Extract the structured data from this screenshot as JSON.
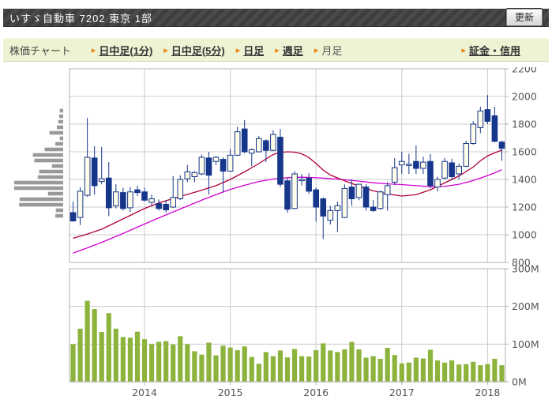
{
  "header": {
    "title": "いすゞ自動車 7202 東京 1部",
    "refresh_label": "更新"
  },
  "toolbar": {
    "label": "株価チャート",
    "arrow": "▸",
    "items": [
      {
        "label": "日中足(1分)",
        "link": true
      },
      {
        "label": "日中足(5分)",
        "link": true
      },
      {
        "label": "日足",
        "link": true
      },
      {
        "label": "週足",
        "link": true
      },
      {
        "label": "月足",
        "link": false
      },
      {
        "label": "証金・信用",
        "link": true
      }
    ]
  },
  "chart_data": {
    "type": "candlestick+volume",
    "period": "monthly",
    "grid": true,
    "price_axis": {
      "min": 800,
      "max": 2200,
      "step": 200,
      "ticks": [
        2200,
        2000,
        1800,
        1600,
        1400,
        1200,
        1000,
        800
      ]
    },
    "volume_axis": {
      "max": 300,
      "ticks": [
        {
          "label": "300M",
          "value": 300
        },
        {
          "label": "200M",
          "value": 200
        },
        {
          "label": "100M",
          "value": 100
        },
        {
          "label": "0M",
          "value": 0
        }
      ]
    },
    "x_labels": [
      {
        "label": "2014",
        "slot": 10
      },
      {
        "label": "2015",
        "slot": 22
      },
      {
        "label": "2016",
        "slot": 34
      },
      {
        "label": "2017",
        "slot": 46
      },
      {
        "label": "2018",
        "slot": 58
      }
    ],
    "columns": [
      "month",
      "open",
      "high",
      "low",
      "close",
      "volume_m"
    ],
    "months": [
      [
        "2013-03",
        1160,
        1240,
        1095,
        1100,
        100
      ],
      [
        "2013-04",
        1125,
        1345,
        1070,
        1315,
        141
      ],
      [
        "2013-05",
        1285,
        1845,
        1275,
        1560,
        215
      ],
      [
        "2013-06",
        1555,
        1640,
        1290,
        1355,
        193
      ],
      [
        "2013-07",
        1385,
        1635,
        1365,
        1405,
        132
      ],
      [
        "2013-08",
        1410,
        1525,
        1135,
        1195,
        182
      ],
      [
        "2013-09",
        1210,
        1365,
        1190,
        1310,
        141
      ],
      [
        "2013-10",
        1305,
        1340,
        1175,
        1190,
        119
      ],
      [
        "2013-11",
        1195,
        1345,
        1165,
        1310,
        117
      ],
      [
        "2013-12",
        1325,
        1355,
        1280,
        1305,
        133
      ],
      [
        "2014-01",
        1310,
        1340,
        1240,
        1250,
        113
      ],
      [
        "2014-02",
        1235,
        1290,
        1210,
        1260,
        100
      ],
      [
        "2014-03",
        1225,
        1255,
        1175,
        1190,
        106
      ],
      [
        "2014-04",
        1220,
        1250,
        1160,
        1180,
        108
      ],
      [
        "2014-05",
        1200,
        1425,
        1195,
        1270,
        99
      ],
      [
        "2014-06",
        1260,
        1430,
        1250,
        1400,
        121
      ],
      [
        "2014-07",
        1405,
        1505,
        1380,
        1455,
        100
      ],
      [
        "2014-08",
        1420,
        1460,
        1380,
        1450,
        81
      ],
      [
        "2014-09",
        1440,
        1580,
        1430,
        1560,
        72
      ],
      [
        "2014-10",
        1555,
        1600,
        1290,
        1430,
        104
      ],
      [
        "2014-11",
        1530,
        1570,
        1505,
        1560,
        70
      ],
      [
        "2014-12",
        1545,
        1560,
        1305,
        1460,
        96
      ],
      [
        "2015-01",
        1460,
        1620,
        1455,
        1575,
        91
      ],
      [
        "2015-02",
        1575,
        1780,
        1570,
        1745,
        84
      ],
      [
        "2015-03",
        1765,
        1830,
        1590,
        1600,
        94
      ],
      [
        "2015-04",
        1590,
        1625,
        1495,
        1615,
        66
      ],
      [
        "2015-05",
        1600,
        1715,
        1595,
        1695,
        48
      ],
      [
        "2015-06",
        1680,
        1690,
        1525,
        1610,
        79
      ],
      [
        "2015-07",
        1610,
        1755,
        1605,
        1725,
        68
      ],
      [
        "2015-08",
        1705,
        1765,
        1345,
        1365,
        83
      ],
      [
        "2015-09",
        1390,
        1410,
        1160,
        1185,
        65
      ],
      [
        "2015-10",
        1190,
        1460,
        1185,
        1440,
        87
      ],
      [
        "2015-11",
        1395,
        1440,
        1355,
        1400,
        68
      ],
      [
        "2015-12",
        1410,
        1445,
        1295,
        1315,
        67
      ],
      [
        "2016-01",
        1325,
        1340,
        1095,
        1200,
        84
      ],
      [
        "2016-02",
        1260,
        1270,
        970,
        1135,
        102
      ],
      [
        "2016-03",
        1105,
        1210,
        1075,
        1175,
        83
      ],
      [
        "2016-04",
        1175,
        1240,
        1020,
        1210,
        79
      ],
      [
        "2016-05",
        1125,
        1365,
        1120,
        1335,
        86
      ],
      [
        "2016-06",
        1345,
        1400,
        1210,
        1260,
        106
      ],
      [
        "2016-07",
        1270,
        1370,
        1250,
        1365,
        86
      ],
      [
        "2016-08",
        1345,
        1365,
        1175,
        1200,
        64
      ],
      [
        "2016-09",
        1200,
        1250,
        1165,
        1175,
        68
      ],
      [
        "2016-10",
        1190,
        1320,
        1180,
        1310,
        61
      ],
      [
        "2016-11",
        1290,
        1380,
        1175,
        1355,
        90
      ],
      [
        "2016-12",
        1380,
        1555,
        1360,
        1485,
        71
      ],
      [
        "2017-01",
        1505,
        1600,
        1440,
        1530,
        49
      ],
      [
        "2017-02",
        1505,
        1585,
        1440,
        1510,
        51
      ],
      [
        "2017-03",
        1530,
        1645,
        1440,
        1480,
        64
      ],
      [
        "2017-04",
        1480,
        1565,
        1440,
        1525,
        62
      ],
      [
        "2017-05",
        1530,
        1585,
        1335,
        1355,
        85
      ],
      [
        "2017-06",
        1345,
        1420,
        1315,
        1400,
        57
      ],
      [
        "2017-07",
        1410,
        1555,
        1400,
        1530,
        51
      ],
      [
        "2017-08",
        1520,
        1550,
        1400,
        1420,
        57
      ],
      [
        "2017-09",
        1440,
        1515,
        1400,
        1495,
        46
      ],
      [
        "2017-10",
        1495,
        1680,
        1490,
        1660,
        47
      ],
      [
        "2017-11",
        1660,
        1820,
        1650,
        1800,
        53
      ],
      [
        "2017-12",
        1775,
        1925,
        1735,
        1895,
        44
      ],
      [
        "2018-01",
        1905,
        2010,
        1800,
        1820,
        47
      ],
      [
        "2018-02",
        1860,
        1925,
        1670,
        1675,
        61
      ],
      [
        "2018-03",
        1670,
        1680,
        1535,
        1625,
        44
      ]
    ],
    "ma_short_points": [
      [
        0,
        975
      ],
      [
        2,
        1005
      ],
      [
        4,
        1040
      ],
      [
        6,
        1090
      ],
      [
        8,
        1140
      ],
      [
        10,
        1190
      ],
      [
        12,
        1230
      ],
      [
        14,
        1262
      ],
      [
        16,
        1292
      ],
      [
        18,
        1322
      ],
      [
        20,
        1355
      ],
      [
        22,
        1400
      ],
      [
        24,
        1455
      ],
      [
        26,
        1515
      ],
      [
        28,
        1580
      ],
      [
        29,
        1595
      ],
      [
        30,
        1600
      ],
      [
        31,
        1597
      ],
      [
        32,
        1585
      ],
      [
        33,
        1558
      ],
      [
        34,
        1515
      ],
      [
        35,
        1468
      ],
      [
        36,
        1432
      ],
      [
        38,
        1390
      ],
      [
        40,
        1352
      ],
      [
        42,
        1318
      ],
      [
        44,
        1295
      ],
      [
        46,
        1280
      ],
      [
        48,
        1290
      ],
      [
        50,
        1325
      ],
      [
        52,
        1375
      ],
      [
        54,
        1425
      ],
      [
        56,
        1490
      ],
      [
        57,
        1535
      ],
      [
        58,
        1570
      ],
      [
        59,
        1592
      ],
      [
        60,
        1612
      ]
    ],
    "ma_long_points": [
      [
        0,
        868
      ],
      [
        2,
        905
      ],
      [
        4,
        945
      ],
      [
        6,
        988
      ],
      [
        8,
        1032
      ],
      [
        10,
        1078
      ],
      [
        12,
        1122
      ],
      [
        14,
        1165
      ],
      [
        16,
        1208
      ],
      [
        18,
        1250
      ],
      [
        20,
        1290
      ],
      [
        22,
        1328
      ],
      [
        24,
        1358
      ],
      [
        26,
        1385
      ],
      [
        28,
        1403
      ],
      [
        30,
        1413
      ],
      [
        32,
        1416
      ],
      [
        34,
        1413
      ],
      [
        36,
        1406
      ],
      [
        38,
        1398
      ],
      [
        40,
        1388
      ],
      [
        42,
        1376
      ],
      [
        44,
        1368
      ],
      [
        46,
        1363
      ],
      [
        48,
        1355
      ],
      [
        50,
        1348
      ],
      [
        52,
        1350
      ],
      [
        54,
        1365
      ],
      [
        56,
        1392
      ],
      [
        58,
        1428
      ],
      [
        59,
        1448
      ],
      [
        60,
        1470
      ]
    ],
    "price_by_volume": {
      "top_price": 1897,
      "step_yen": 40,
      "lengths_pct": [
        7,
        8,
        10,
        13,
        28,
        7,
        16,
        38,
        62,
        59,
        23,
        49,
        52,
        100,
        100,
        31,
        89,
        90,
        15,
        16
      ]
    },
    "colors": {
      "bull_fill": "#fdfdea",
      "bear_fill": "#16368c",
      "candle_stroke": "#16368c",
      "ma_short": "#b0003a",
      "ma_long": "#d400d4",
      "volume_bar": "#8cb43c",
      "grid": "#cccccc",
      "frame": "#b0b0b0",
      "volume_profile": "#999999",
      "axis_text": "#555555"
    }
  }
}
